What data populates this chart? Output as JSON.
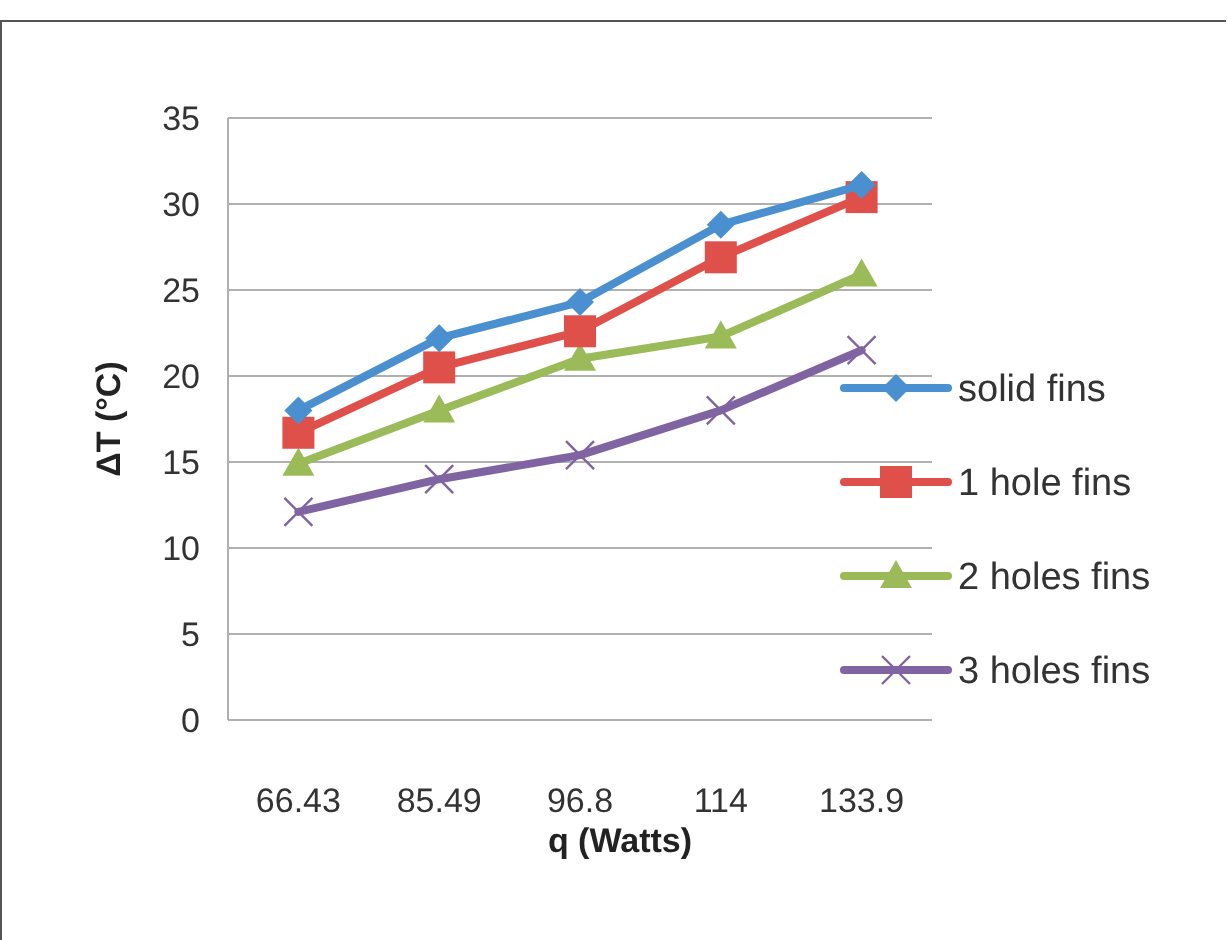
{
  "chart_data": {
    "type": "line",
    "xlabel": "q (Watts)",
    "ylabel": "ΔT (°C)",
    "categories": [
      "66.43",
      "85.49",
      "96.8",
      "114",
      "133.9"
    ],
    "ylim": [
      0,
      35
    ],
    "yticks": [
      0,
      5,
      10,
      15,
      20,
      25,
      30,
      35
    ],
    "grid": "y",
    "legend": "right",
    "series": [
      {
        "name": "solid fins",
        "color": "#4a90d0",
        "marker": "diamond",
        "values": [
          18.0,
          22.2,
          24.3,
          28.8,
          31.1
        ]
      },
      {
        "name": "1 hole fins",
        "color": "#e0504b",
        "marker": "square",
        "values": [
          16.7,
          20.5,
          22.6,
          26.9,
          30.4
        ]
      },
      {
        "name": "2 holes fins",
        "color": "#9bbb59",
        "marker": "triangle",
        "values": [
          14.9,
          18.0,
          21.0,
          22.3,
          25.9
        ]
      },
      {
        "name": "3 holes fins",
        "color": "#8064a2",
        "marker": "cross",
        "values": [
          12.1,
          14.0,
          15.4,
          18.0,
          21.5
        ]
      }
    ]
  }
}
